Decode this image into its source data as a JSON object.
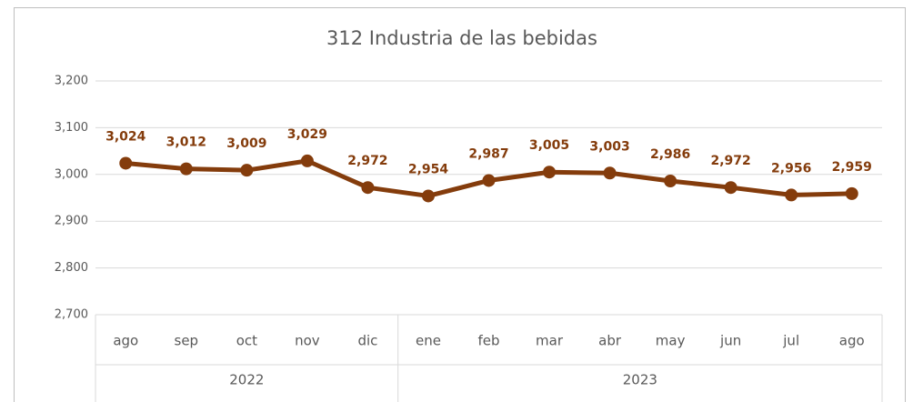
{
  "chart_data": {
    "type": "line",
    "title": "312 Industria de las bebidas",
    "categories": [
      "ago",
      "sep",
      "oct",
      "nov",
      "dic",
      "ene",
      "feb",
      "mar",
      "abr",
      "may",
      "jun",
      "jul",
      "ago"
    ],
    "groups": [
      {
        "label": "2022",
        "count": 5
      },
      {
        "label": "2023",
        "count": 8
      }
    ],
    "series": [
      {
        "name": "312 Industria de las bebidas",
        "color": "#843c0c",
        "values": [
          3024,
          3012,
          3009,
          3029,
          2972,
          2954,
          2987,
          3005,
          3003,
          2986,
          2972,
          2956,
          2959
        ],
        "value_labels": [
          "3,024",
          "3,012",
          "3,009",
          "3,029",
          "2,972",
          "2,954",
          "2,987",
          "3,005",
          "3,003",
          "2,986",
          "2,972",
          "2,956",
          "2,959"
        ]
      }
    ],
    "ylim": [
      2700,
      3200
    ],
    "yticks": [
      {
        "value": 2700,
        "label": "2,700"
      },
      {
        "value": 2800,
        "label": "2,800"
      },
      {
        "value": 2900,
        "label": "2,900"
      },
      {
        "value": 3000,
        "label": "3,000"
      },
      {
        "value": 3100,
        "label": "3,100"
      },
      {
        "value": 3200,
        "label": "3,200"
      }
    ],
    "grid": true
  }
}
